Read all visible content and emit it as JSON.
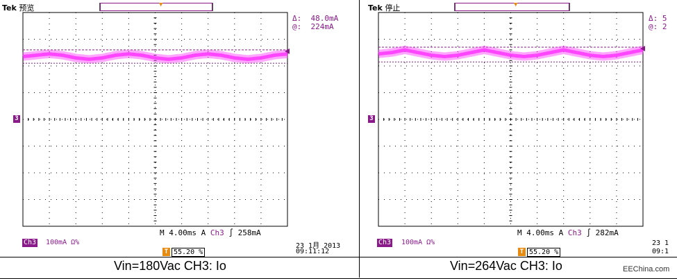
{
  "chart_data": [
    {
      "type": "line",
      "title": "",
      "caption": "Vin=180Vac CH3: Io",
      "brand": "Tek",
      "state": "预览",
      "cursor": {
        "delta_label": "Δ:",
        "delta_value": "48.0mA",
        "at_label": "@:",
        "at_value": "224mA"
      },
      "channel_marker": "3",
      "channel": "Ch3",
      "scale": "100mA",
      "scale_suffix": "Ω%",
      "timebase": "M 4.00ms",
      "trigger_mode": "A",
      "trigger_source": "Ch3",
      "trigger_slope": "∫",
      "trigger_level": "258mA",
      "trigger_position": "55.20 %",
      "date": "23 1月 2013",
      "time": "09:11:12",
      "x_unit": "div",
      "y_unit": "div",
      "xlim": [
        0,
        10
      ],
      "ylim": [
        -4,
        4
      ],
      "grid": true,
      "series": [
        {
          "color": "#ff3cff",
          "x": [
            0,
            0.5,
            1,
            1.5,
            2,
            2.5,
            3,
            3.5,
            4,
            4.5,
            5,
            5.5,
            6,
            6.5,
            7,
            7.5,
            8,
            8.5,
            9,
            9.5,
            10
          ],
          "y": [
            2.35,
            2.4,
            2.45,
            2.4,
            2.3,
            2.25,
            2.3,
            2.4,
            2.45,
            2.4,
            2.3,
            2.25,
            2.3,
            2.4,
            2.45,
            2.4,
            2.3,
            2.25,
            2.3,
            2.4,
            2.45
          ]
        }
      ],
      "cursor_lines": [
        2.6,
        2.1
      ]
    },
    {
      "type": "line",
      "title": "",
      "caption": "Vin=264Vac CH3: Io",
      "brand": "Tek",
      "state": "停止",
      "cursor": {
        "delta_label": "Δ:",
        "delta_value": "5",
        "at_label": "@:",
        "at_value": "2"
      },
      "channel_marker": "3",
      "channel": "Ch3",
      "scale": "100mA",
      "scale_suffix": "Ω%",
      "timebase": "M 4.00ms",
      "trigger_mode": "A",
      "trigger_source": "Ch3",
      "trigger_slope": "∫",
      "trigger_level": "282mA",
      "trigger_position": "55.20 %",
      "date": "23 1",
      "time": "09:1",
      "x_unit": "div",
      "y_unit": "div",
      "xlim": [
        0,
        10
      ],
      "ylim": [
        -4,
        4
      ],
      "grid": true,
      "series": [
        {
          "color": "#ff3cff",
          "x": [
            0,
            0.5,
            1,
            1.5,
            2,
            2.5,
            3,
            3.5,
            4,
            4.5,
            5,
            5.5,
            6,
            6.5,
            7,
            7.5,
            8,
            8.5,
            9,
            9.5,
            10
          ],
          "y": [
            2.45,
            2.5,
            2.6,
            2.5,
            2.4,
            2.35,
            2.4,
            2.5,
            2.6,
            2.5,
            2.4,
            2.35,
            2.4,
            2.5,
            2.6,
            2.5,
            2.4,
            2.35,
            2.4,
            2.5,
            2.6
          ]
        }
      ],
      "cursor_lines": [
        2.7,
        2.15
      ]
    }
  ],
  "watermark": "EEChina.com"
}
